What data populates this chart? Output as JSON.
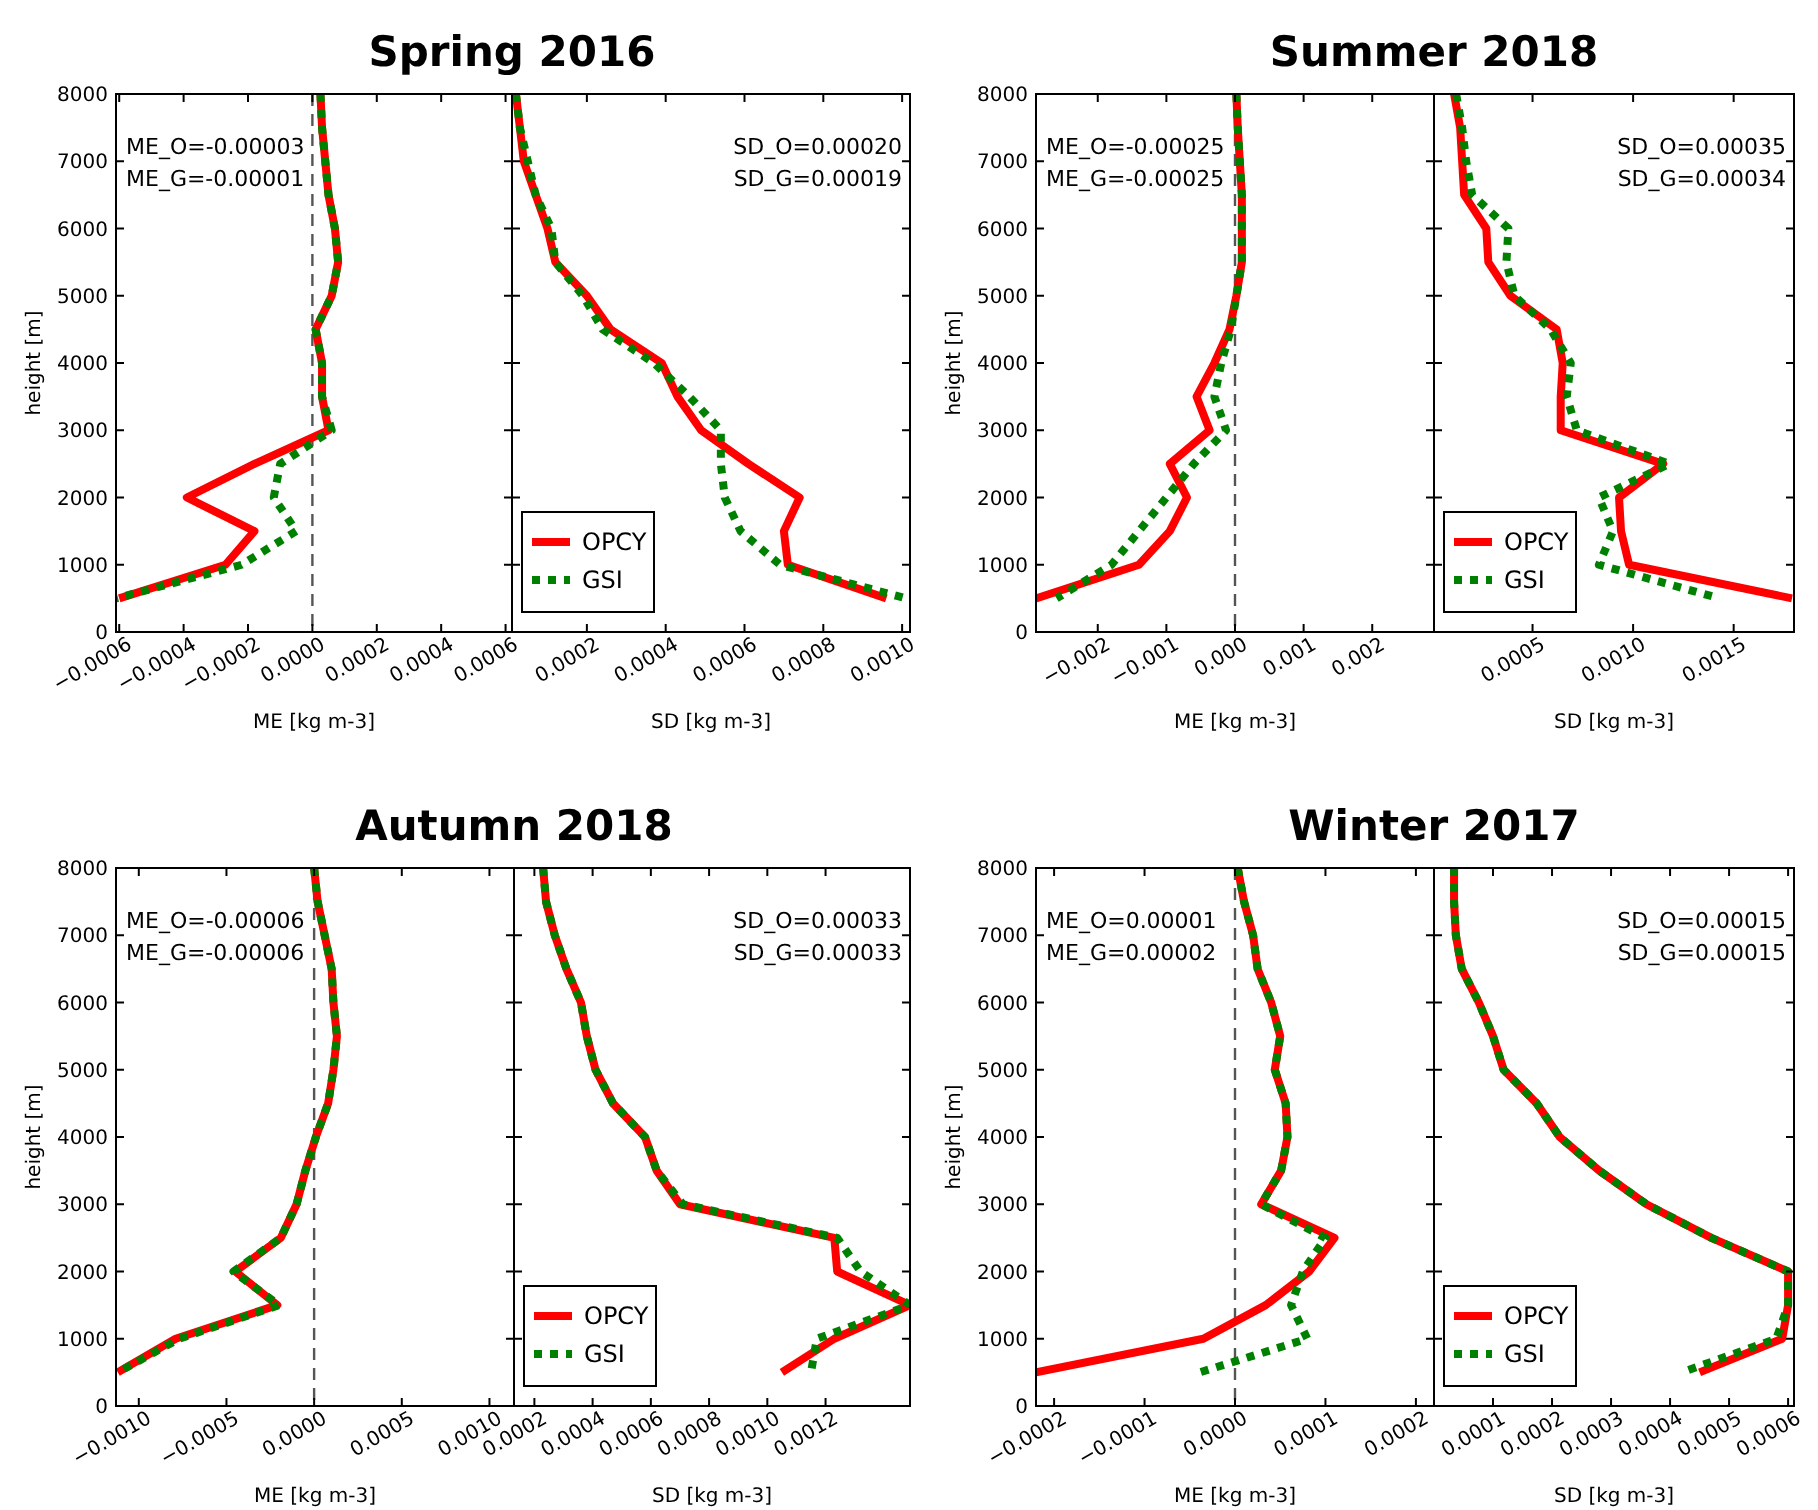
{
  "chart_data": [
    {
      "type": "line",
      "title": "Spring 2016",
      "xlabel": "ME [kg m-3]",
      "ylabel": "height [m]",
      "annotations": [
        "ME_O=-0.00003",
        "ME_G=-0.00001"
      ],
      "xlim": [
        -0.00061,
        0.00062
      ],
      "xticks": [
        {
          "value": -0.0006,
          "label": "−0.0006"
        },
        {
          "value": -0.0004,
          "label": "−0.0004"
        },
        {
          "value": -0.0002,
          "label": "−0.0002"
        },
        {
          "value": 0,
          "label": "0.0000"
        },
        0.0002,
        0.0004,
        0.0006
      ],
      "ylim": [
        0,
        8000
      ],
      "yticks": [
        0,
        1000,
        2000,
        3000,
        4000,
        5000,
        6000,
        7000,
        8000
      ],
      "ref_lines": [
        {
          "axis": "x",
          "value": 0,
          "color": "#555555",
          "line_style": "dashed"
        }
      ],
      "series": [
        {
          "color": "#ff0000",
          "line_style": "solid",
          "x": [
            2.5e-05,
            3e-05,
            4e-05,
            5e-05,
            7e-05,
            8e-05,
            6e-05,
            1e-05,
            3e-05,
            3e-05,
            5e-05,
            -0.00018,
            -0.00039,
            -0.00018,
            -0.00027,
            -0.0006
          ],
          "values": [
            8000,
            7500,
            7000,
            6500,
            6000,
            5500,
            5000,
            4500,
            4000,
            3500,
            3000,
            2500,
            2000,
            1500,
            1000,
            500
          ]
        },
        {
          "color": "#008000",
          "line_style": "dotted",
          "x": [
            2.5e-05,
            3e-05,
            4e-05,
            5e-05,
            7e-05,
            8e-05,
            6e-05,
            1e-05,
            3e-05,
            3e-05,
            6e-05,
            -0.0001,
            -0.00012,
            -5e-05,
            -0.00022,
            -0.00061
          ],
          "values": [
            8000,
            7500,
            7000,
            6500,
            6000,
            5500,
            5000,
            4500,
            4000,
            3500,
            3000,
            2500,
            2000,
            1500,
            1000,
            500
          ]
        }
      ]
    },
    {
      "type": "line",
      "xlabel": "SD [kg m-3]",
      "annotations": [
        "SD_O=0.00020",
        "SD_G=0.00019"
      ],
      "xlim": [
        1e-05,
        0.00102
      ],
      "xticks": [
        0.0002,
        0.0004,
        0.0006,
        0.0008,
        {
          "value": 0.001,
          "label": "0.0010"
        }
      ],
      "ylim": [
        0,
        8000
      ],
      "yticks": [
        0,
        1000,
        2000,
        3000,
        4000,
        5000,
        6000,
        7000,
        8000
      ],
      "tick_labels": "x",
      "legend": "bottom left",
      "series": [
        {
          "name": "OPCY",
          "color": "#ff0000",
          "line_style": "solid",
          "x": [
            2e-05,
            3e-05,
            4e-05,
            7e-05,
            0.0001,
            0.00012,
            0.0002,
            0.00026,
            0.00039,
            0.00043,
            0.00049,
            0.00061,
            0.00074,
            0.0007,
            0.00071,
            0.00096
          ],
          "values": [
            8000,
            7500,
            7000,
            6500,
            6000,
            5500,
            5000,
            4500,
            4000,
            3500,
            3000,
            2500,
            2000,
            1500,
            1000,
            500
          ]
        },
        {
          "name": "GSI",
          "color": "#008000",
          "line_style": "dotted",
          "x": [
            2e-05,
            3e-05,
            5e-05,
            7e-05,
            0.00011,
            0.00012,
            0.00019,
            0.00024,
            0.00037,
            0.00046,
            0.00054,
            0.00054,
            0.00055,
            0.00059,
            0.00069,
            0.00101
          ],
          "values": [
            8000,
            7500,
            7000,
            6500,
            6000,
            5500,
            5000,
            4500,
            4000,
            3500,
            3000,
            2500,
            2000,
            1500,
            1000,
            500
          ]
        }
      ]
    },
    {
      "type": "line",
      "title": "Summer 2018",
      "xlabel": "ME [kg m-3]",
      "ylabel": "height [m]",
      "annotations": [
        "ME_O=-0.00025",
        "ME_G=-0.00025"
      ],
      "xlim": [
        -0.0029,
        0.0029
      ],
      "xticks": [
        {
          "value": -0.002,
          "label": "−0.002"
        },
        {
          "value": -0.001,
          "label": "−0.001"
        },
        {
          "value": 0,
          "label": "0.000"
        },
        0.001,
        0.002
      ],
      "ylim": [
        0,
        8000
      ],
      "yticks": [
        0,
        1000,
        2000,
        3000,
        4000,
        5000,
        6000,
        7000,
        8000
      ],
      "ref_lines": [
        {
          "axis": "x",
          "value": 0,
          "color": "#555555",
          "line_style": "dashed"
        }
      ],
      "series": [
        {
          "color": "#ff0000",
          "line_style": "solid",
          "x": [
            2e-05,
            4e-05,
            7e-05,
            0.0001,
            0.0001,
            0.0001,
            2e-05,
            -8e-05,
            -0.0003,
            -0.00056,
            -0.00037,
            -0.00095,
            -0.0007,
            -0.00095,
            -0.0014,
            -0.0029
          ],
          "values": [
            8000,
            7500,
            7000,
            6500,
            6000,
            5500,
            5000,
            4500,
            4000,
            3500,
            3000,
            2500,
            2000,
            1500,
            1000,
            500
          ]
        },
        {
          "color": "#008000",
          "line_style": "dotted",
          "x": [
            2e-05,
            4e-05,
            7e-05,
            0.0001,
            0.0001,
            0.0001,
            2e-05,
            -6e-05,
            -0.0002,
            -0.0003,
            -0.00013,
            -0.0006,
            -0.001,
            -0.0014,
            -0.0018,
            -0.0026
          ],
          "values": [
            8000,
            7500,
            7000,
            6500,
            6000,
            5500,
            5000,
            4500,
            4000,
            3500,
            3000,
            2500,
            2000,
            1500,
            1000,
            500
          ]
        }
      ]
    },
    {
      "type": "line",
      "xlabel": "SD [kg m-3]",
      "annotations": [
        "SD_O=0.00035",
        "SD_G=0.00034"
      ],
      "xlim": [
        1e-05,
        0.0018
      ],
      "xticks": [
        0.0005,
        {
          "value": 0.001,
          "label": "0.0010"
        },
        0.0015
      ],
      "ylim": [
        0,
        8000
      ],
      "yticks": [
        0,
        1000,
        2000,
        3000,
        4000,
        5000,
        6000,
        7000,
        8000
      ],
      "tick_labels": "x",
      "legend": "bottom left",
      "series": [
        {
          "name": "OPCY",
          "color": "#ff0000",
          "line_style": "solid",
          "x": [
            0.00011,
            0.00014,
            0.00015,
            0.00016,
            0.00027,
            0.00028,
            0.00039,
            0.00062,
            0.00065,
            0.00064,
            0.00064,
            0.00115,
            0.00093,
            0.00094,
            0.00098,
            0.00179
          ],
          "values": [
            8000,
            7500,
            7000,
            6500,
            6000,
            5500,
            5000,
            4500,
            4000,
            3500,
            3000,
            2500,
            2000,
            1500,
            1000,
            500
          ]
        },
        {
          "name": "GSI",
          "color": "#008000",
          "line_style": "dotted",
          "x": [
            0.00012,
            0.00015,
            0.00017,
            0.0002,
            0.00038,
            0.00037,
            0.00041,
            0.00059,
            0.00069,
            0.00067,
            0.00072,
            0.00118,
            0.00083,
            0.0009,
            0.00083,
            0.00143
          ],
          "values": [
            8000,
            7500,
            7000,
            6500,
            6000,
            5500,
            5000,
            4500,
            4000,
            3500,
            3000,
            2500,
            2000,
            1500,
            1000,
            500
          ]
        }
      ]
    },
    {
      "type": "line",
      "title": "Autumn 2018",
      "xlabel": "ME [kg m-3]",
      "ylabel": "height [m]",
      "annotations": [
        "ME_O=-0.00006",
        "ME_G=-0.00006"
      ],
      "xlim": [
        -0.00113,
        0.00114
      ],
      "xticks": [
        {
          "value": -0.001,
          "label": "−0.0010"
        },
        {
          "value": -0.0005,
          "label": "−0.0005"
        },
        {
          "value": 0,
          "label": "0.0000"
        },
        0.0005,
        {
          "value": 0.001,
          "label": "0.0010"
        }
      ],
      "ylim": [
        0,
        8000
      ],
      "yticks": [
        0,
        1000,
        2000,
        3000,
        4000,
        5000,
        6000,
        7000,
        8000
      ],
      "ref_lines": [
        {
          "axis": "x",
          "value": 0,
          "color": "#555555",
          "line_style": "dashed"
        }
      ],
      "series": [
        {
          "color": "#ff0000",
          "line_style": "solid",
          "x": [
            0,
            2e-05,
            6e-05,
            0.0001,
            0.00011,
            0.00013,
            0.00011,
            8e-05,
            1e-05,
            -5e-05,
            -0.0001,
            -0.00019,
            -0.00045,
            -0.00021,
            -0.00079,
            -0.00112
          ],
          "values": [
            8000,
            7500,
            7000,
            6500,
            6000,
            5500,
            5000,
            4500,
            4000,
            3500,
            3000,
            2500,
            2000,
            1500,
            1000,
            500
          ]
        },
        {
          "color": "#008000",
          "line_style": "dotted",
          "x": [
            0,
            2e-05,
            6e-05,
            0.0001,
            0.00011,
            0.00013,
            0.00011,
            8e-05,
            1e-05,
            -5e-05,
            -0.0001,
            -0.00019,
            -0.00046,
            -0.0002,
            -0.00077,
            -0.00112
          ],
          "values": [
            8000,
            7500,
            7000,
            6500,
            6000,
            5500,
            5000,
            4500,
            4000,
            3500,
            3000,
            2500,
            2000,
            1500,
            1000,
            500
          ]
        }
      ]
    },
    {
      "type": "line",
      "xlabel": "SD [kg m-3]",
      "annotations": [
        "SD_O=0.00033",
        "SD_G=0.00033"
      ],
      "xlim": [
        0.00013,
        0.00149
      ],
      "xticks": [
        0.0002,
        0.0004,
        0.0006,
        0.0008,
        {
          "value": 0.001,
          "label": "0.0010"
        },
        0.0012
      ],
      "ylim": [
        0,
        8000
      ],
      "yticks": [
        0,
        1000,
        2000,
        3000,
        4000,
        5000,
        6000,
        7000,
        8000
      ],
      "tick_labels": "x",
      "legend": "bottom left",
      "series": [
        {
          "name": "OPCY",
          "color": "#ff0000",
          "line_style": "solid",
          "x": [
            0.00023,
            0.00024,
            0.00027,
            0.00031,
            0.00036,
            0.00038,
            0.00041,
            0.00047,
            0.00058,
            0.00062,
            0.0007,
            0.00123,
            0.00124,
            0.00149,
            0.00123,
            0.00105
          ],
          "values": [
            8000,
            7500,
            7000,
            6500,
            6000,
            5500,
            5000,
            4500,
            4000,
            3500,
            3000,
            2500,
            2000,
            1500,
            1000,
            500
          ]
        },
        {
          "name": "GSI",
          "color": "#008000",
          "line_style": "dotted",
          "x": [
            0.00023,
            0.00024,
            0.00027,
            0.00031,
            0.00036,
            0.00038,
            0.00041,
            0.00047,
            0.00058,
            0.00062,
            0.00071,
            0.00124,
            0.00132,
            0.00149,
            0.00117,
            0.00115
          ],
          "values": [
            8000,
            7500,
            7000,
            6500,
            6000,
            5500,
            5000,
            4500,
            4000,
            3500,
            3000,
            2500,
            2000,
            1500,
            1000,
            500
          ]
        }
      ]
    },
    {
      "type": "line",
      "title": "Winter 2017",
      "xlabel": "ME [kg m-3]",
      "ylabel": "height [m]",
      "annotations": [
        "ME_O=0.00001",
        "ME_G=0.00002"
      ],
      "xlim": [
        -0.00022,
        0.00022
      ],
      "xticks": [
        {
          "value": -0.0002,
          "label": "−0.0002"
        },
        {
          "value": -0.0001,
          "label": "−0.0001"
        },
        {
          "value": 0,
          "label": "0.0000"
        },
        0.0001,
        0.0002
      ],
      "ylim": [
        0,
        8000
      ],
      "yticks": [
        0,
        1000,
        2000,
        3000,
        4000,
        5000,
        6000,
        7000,
        8000
      ],
      "ref_lines": [
        {
          "axis": "x",
          "value": 0,
          "color": "#555555",
          "line_style": "dashed"
        }
      ],
      "series": [
        {
          "color": "#ff0000",
          "line_style": "solid",
          "x": [
            3e-06,
            1e-05,
            2e-05,
            2.5e-05,
            4e-05,
            5e-05,
            4.4e-05,
            5.6e-05,
            5.8e-05,
            5.1e-05,
            2.9e-05,
            0.00011,
            8.2e-05,
            3.4e-05,
            -3.5e-05,
            -0.00022
          ],
          "values": [
            8000,
            7500,
            7000,
            6500,
            6000,
            5500,
            5000,
            4500,
            4000,
            3500,
            3000,
            2500,
            2000,
            1500,
            1000,
            500
          ]
        },
        {
          "color": "#008000",
          "line_style": "dotted",
          "x": [
            3e-06,
            1e-05,
            2e-05,
            2.5e-05,
            4e-05,
            5e-05,
            4.4e-05,
            5.6e-05,
            5.8e-05,
            5.1e-05,
            2.9e-05,
            0.0001,
            7.5e-05,
            6.2e-05,
            8e-05,
            -3.9e-05
          ],
          "values": [
            8000,
            7500,
            7000,
            6500,
            6000,
            5500,
            5000,
            4500,
            4000,
            3500,
            3000,
            2500,
            2000,
            1500,
            1000,
            500
          ]
        }
      ]
    },
    {
      "type": "line",
      "xlabel": "SD [kg m-3]",
      "annotations": [
        "SD_O=0.00015",
        "SD_G=0.00015"
      ],
      "xlim": [
        0,
        0.00061
      ],
      "xticks": [
        0.0001,
        0.0002,
        0.0003,
        0.0004,
        0.0005,
        0.0006
      ],
      "ylim": [
        0,
        8000
      ],
      "yticks": [
        0,
        1000,
        2000,
        3000,
        4000,
        5000,
        6000,
        7000,
        8000
      ],
      "tick_labels": "x",
      "legend": "bottom left",
      "series": [
        {
          "name": "OPCY",
          "color": "#ff0000",
          "line_style": "solid",
          "x": [
            3.4e-05,
            3.4e-05,
            3.7e-05,
            4.7e-05,
            7.6e-05,
            0.0001,
            0.000118,
            0.000174,
            0.000213,
            0.00028,
            0.00036,
            0.00047,
            0.0006,
            0.0006,
            0.00059,
            0.00045
          ],
          "values": [
            8000,
            7500,
            7000,
            6500,
            6000,
            5500,
            5000,
            4500,
            4000,
            3500,
            3000,
            2500,
            2000,
            1500,
            1000,
            500
          ]
        },
        {
          "name": "GSI",
          "color": "#008000",
          "line_style": "dotted",
          "x": [
            3.4e-05,
            3.4e-05,
            3.7e-05,
            4.7e-05,
            7.6e-05,
            0.0001,
            0.000118,
            0.000174,
            0.000213,
            0.00028,
            0.00036,
            0.00047,
            0.0006,
            0.0006,
            0.00058,
            0.00042
          ],
          "values": [
            8000,
            7500,
            7000,
            6500,
            6000,
            5500,
            5000,
            4500,
            4000,
            3500,
            3000,
            2500,
            2000,
            1500,
            1000,
            500
          ]
        }
      ]
    }
  ]
}
